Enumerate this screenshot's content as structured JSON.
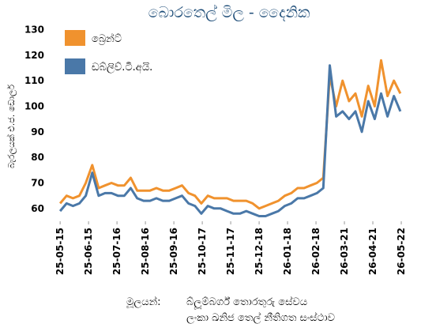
{
  "chart_data": {
    "type": "line",
    "title": "බොරතෙල් මිල - දෛනික",
    "ylabel": "බැරලයක් එ.ජ. ඩොලර්",
    "source_label": "මූලයන්:",
    "sources": [
      "බ්ලූම්බර්ග් තොරතුරු සේවය",
      "ලංකා ඛනිජ තෙල් නීතිගත සංස්ථාව"
    ],
    "legend": "top-left",
    "x": [
      "25-05-15",
      "25-05-22",
      "25-05-29",
      "25-06-05",
      "25-06-12",
      "25-06-19",
      "25-06-26",
      "25-07-03",
      "25-07-10",
      "25-07-17",
      "25-07-24",
      "25-07-31",
      "25-08-07",
      "25-08-14",
      "25-08-21",
      "25-08-28",
      "25-09-04",
      "25-09-11",
      "25-09-18",
      "25-09-25",
      "25-10-02",
      "25-10-09",
      "25-10-16",
      "25-10-23",
      "25-10-30",
      "25-11-06",
      "25-11-13",
      "25-11-20",
      "25-11-27",
      "25-12-04",
      "25-12-11",
      "25-12-18",
      "25-12-25",
      "26-01-01",
      "26-01-08",
      "26-01-15",
      "26-01-22",
      "26-01-29",
      "26-02-05",
      "26-02-12",
      "26-02-19",
      "26-02-26",
      "26-03-05",
      "26-03-12",
      "26-03-19",
      "26-03-26",
      "26-04-02",
      "26-04-09",
      "26-04-16",
      "26-04-23",
      "26-04-30",
      "26-05-07",
      "26-05-14",
      "26-05-21"
    ],
    "series": [
      {
        "name": "බ්‍රෙන්ට්",
        "color": "#f0922e",
        "values": [
          62,
          65,
          64,
          65,
          70,
          77,
          68,
          69,
          70,
          69,
          69,
          72,
          67,
          67,
          67,
          68,
          67,
          67,
          68,
          69,
          66,
          65,
          62,
          65,
          64,
          64,
          64,
          63,
          63,
          63,
          62,
          60,
          61,
          62,
          63,
          65,
          66,
          68,
          68,
          69,
          70,
          72,
          112,
          100,
          110,
          102,
          105,
          96,
          108,
          100,
          118,
          104,
          110,
          105
        ]
      },
      {
        "name": "ඩබ්ලිව්.ටී.අයි.",
        "color": "#4a78a8",
        "values": [
          59,
          62,
          61,
          62,
          65,
          74,
          65,
          66,
          66,
          65,
          65,
          68,
          64,
          63,
          63,
          64,
          63,
          63,
          64,
          65,
          62,
          61,
          58,
          61,
          60,
          60,
          59,
          58,
          58,
          59,
          58,
          57,
          57,
          58,
          59,
          61,
          62,
          64,
          64,
          65,
          66,
          68,
          116,
          96,
          98,
          95,
          98,
          90,
          102,
          95,
          105,
          96,
          104,
          98
        ]
      }
    ],
    "xlim": [
      "25-05-08",
      "26-05-28"
    ],
    "xticks": [
      "25-05-15",
      "25-06-15",
      "25-07-16",
      "25-08-16",
      "25-09-16",
      "25-10-17",
      "25-11-17",
      "25-12-18",
      "26-01-18",
      "26-02-18",
      "26-03-21",
      "26-04-21",
      "26-05-22"
    ],
    "ylim": [
      55,
      132
    ],
    "yticks": [
      60,
      70,
      80,
      90,
      100,
      110,
      120,
      130
    ],
    "grid": false
  }
}
